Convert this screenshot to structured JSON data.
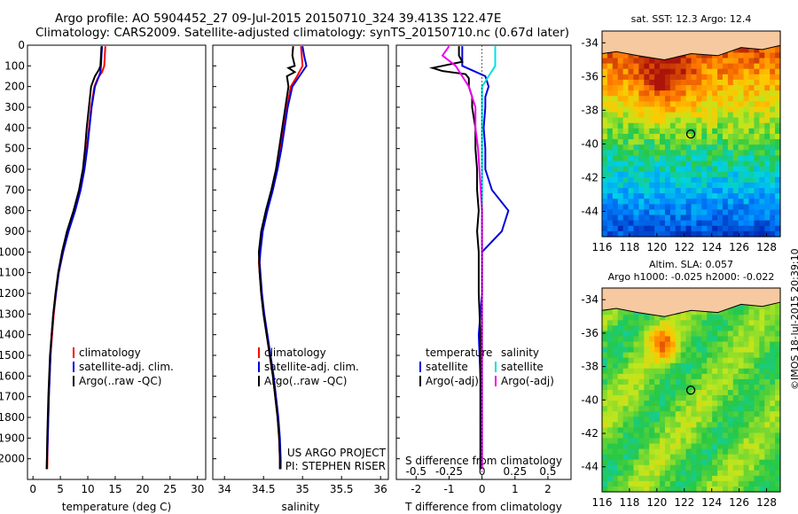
{
  "header": {
    "line1": "Argo profile: AO 5904452_27 09-Jul-2015 20150710_324 39.413S 122.47E",
    "line2": "Climatology: CARS2009. Satellite-adjusted climatology: synTS_20150710.nc (0.67d later)"
  },
  "colors": {
    "climatology": "#ff0000",
    "satellite": "#0000dd",
    "argo": "#000000",
    "sat_salinity": "#00e0e0",
    "argo_salinity": "#ee00ee"
  },
  "chart_data": [
    {
      "type": "line",
      "id": "temperature",
      "xlabel": "temperature (deg C)",
      "ylabel": "",
      "xlim": [
        -1,
        31.5
      ],
      "ylim": [
        2100,
        0
      ],
      "xticks": [
        "0",
        "5",
        "10",
        "15",
        "20",
        "25",
        "30"
      ],
      "yticks": [
        "0",
        "100",
        "200",
        "300",
        "400",
        "500",
        "600",
        "700",
        "800",
        "900",
        "1000",
        "1100",
        "1200",
        "1300",
        "1400",
        "1500",
        "1600",
        "1700",
        "1800",
        "1900",
        "2000"
      ],
      "legend": [
        "climatology",
        "satellite-adj. clim.",
        "Argo(..raw -QC)"
      ],
      "legend_position": "bottom-right",
      "series": [
        {
          "name": "climatology",
          "depth": [
            5,
            50,
            100,
            130,
            160,
            200,
            250,
            300,
            400,
            500,
            600,
            700,
            800,
            900,
            1000,
            1100,
            1200,
            1300,
            1400,
            1500,
            1700,
            1900,
            2050
          ],
          "values": [
            13.2,
            13.1,
            13.0,
            12.6,
            11.8,
            11.2,
            10.9,
            10.6,
            10.2,
            9.8,
            9.3,
            8.6,
            7.5,
            6.4,
            5.5,
            4.7,
            4.2,
            3.8,
            3.5,
            3.2,
            2.9,
            2.7,
            2.6
          ]
        },
        {
          "name": "satellite-adj. clim.",
          "depth": [
            5,
            50,
            100,
            130,
            160,
            200,
            250,
            300,
            400,
            500,
            600,
            700,
            800,
            900,
            1000,
            1100,
            1200,
            1300,
            1400,
            1500,
            1700,
            1900,
            2050
          ],
          "values": [
            12.6,
            12.5,
            12.4,
            12.3,
            11.9,
            11.3,
            11.0,
            10.7,
            10.3,
            9.9,
            9.4,
            8.7,
            7.7,
            6.5,
            5.5,
            4.7,
            4.2,
            3.7,
            3.4,
            3.2,
            2.9,
            2.7,
            2.5
          ]
        },
        {
          "name": "Argo(..raw -QC)",
          "depth": [
            5,
            50,
            100,
            120,
            150,
            200,
            250,
            300,
            400,
            500,
            600,
            700,
            800,
            900,
            1000,
            1100,
            1200,
            1300,
            1400,
            1500,
            1700,
            1900,
            2050
          ],
          "values": [
            12.5,
            12.4,
            12.3,
            12.0,
            11.3,
            10.6,
            10.4,
            10.2,
            9.8,
            9.5,
            9.1,
            8.4,
            7.4,
            6.2,
            5.3,
            4.6,
            4.1,
            3.7,
            3.4,
            3.1,
            2.8,
            2.6,
            2.5
          ]
        }
      ]
    },
    {
      "type": "line",
      "id": "salinity",
      "xlabel": "salinity",
      "ylabel": "",
      "xlim": [
        33.85,
        36.1
      ],
      "ylim": [
        2100,
        0
      ],
      "xticks": [
        "34",
        "34.5",
        "35",
        "35.5",
        "36"
      ],
      "legend": [
        "climatology",
        "satellite-adj. clim.",
        "Argo(..raw -QC)"
      ],
      "legend_position": "bottom-right",
      "annotation_lines": [
        "US ARGO PROJECT",
        "PI: STEPHEN RISER"
      ],
      "series": [
        {
          "name": "climatology",
          "depth": [
            5,
            50,
            100,
            150,
            200,
            300,
            400,
            500,
            600,
            700,
            800,
            900,
            1000,
            1050,
            1100,
            1200,
            1300,
            1400,
            1500,
            1600,
            1700,
            1800,
            1900,
            2000,
            2050
          ],
          "values": [
            34.98,
            34.99,
            35.0,
            34.93,
            34.85,
            34.8,
            34.76,
            34.72,
            34.67,
            34.61,
            34.54,
            34.48,
            34.45,
            34.44,
            34.45,
            34.47,
            34.5,
            34.54,
            34.58,
            34.62,
            34.65,
            34.68,
            34.7,
            34.71,
            34.71
          ]
        },
        {
          "name": "satellite-adj. clim.",
          "depth": [
            5,
            50,
            100,
            150,
            200,
            300,
            400,
            500,
            600,
            700,
            800,
            900,
            1000,
            1050,
            1100,
            1200,
            1300,
            1400,
            1500,
            1600,
            1700,
            1800,
            1900,
            2000,
            2050
          ],
          "values": [
            35.0,
            35.02,
            35.05,
            34.96,
            34.87,
            34.81,
            34.77,
            34.73,
            34.68,
            34.62,
            34.55,
            34.49,
            34.46,
            34.45,
            34.46,
            34.48,
            34.51,
            34.55,
            34.59,
            34.63,
            34.66,
            34.69,
            34.71,
            34.72,
            34.72
          ]
        },
        {
          "name": "Argo(..raw -QC)",
          "depth": [
            5,
            50,
            100,
            110,
            130,
            150,
            200,
            300,
            400,
            500,
            600,
            700,
            800,
            900,
            1000,
            1100,
            1200,
            1300,
            1400,
            1500,
            1600,
            1700,
            1800,
            1900,
            2000,
            2050
          ],
          "values": [
            34.88,
            34.87,
            34.9,
            34.82,
            34.9,
            34.8,
            34.82,
            34.78,
            34.74,
            34.7,
            34.66,
            34.6,
            34.53,
            34.47,
            34.44,
            34.45,
            34.47,
            34.5,
            34.54,
            34.58,
            34.62,
            34.65,
            34.68,
            34.7,
            34.71,
            34.71
          ]
        }
      ]
    },
    {
      "type": "line",
      "id": "difference",
      "xlabel": "T difference from climatology",
      "xlabel_top": "S difference from climatology",
      "xlim": [
        -2.6,
        2.7
      ],
      "ylim": [
        2100,
        0
      ],
      "xticks": [
        "-2",
        "-1",
        "0",
        "1",
        "2"
      ],
      "xticks_top": [
        "-0.5",
        "-0.25",
        "0",
        "0.25",
        "0.5"
      ],
      "xticks_top_values": [
        -0.5,
        -0.25,
        0,
        0.25,
        0.5
      ],
      "legend_groups": [
        {
          "title": "temperature",
          "items": [
            "satellite",
            "Argo(-adj)"
          ]
        },
        {
          "title": "salinity",
          "items": [
            "satellite",
            "Argo(-adj)"
          ]
        }
      ],
      "series": [
        {
          "name": "temperature satellite",
          "depth": [
            5,
            50,
            100,
            150,
            200,
            250,
            300,
            400,
            500,
            600,
            700,
            800,
            900,
            1000,
            1100,
            1200,
            1400,
            1600,
            1800,
            2000,
            2050
          ],
          "values": [
            -0.6,
            -0.6,
            -0.6,
            0.1,
            0.2,
            0.1,
            0.1,
            0.05,
            0.1,
            0.1,
            0.3,
            0.8,
            0.6,
            0.0,
            0.0,
            0.0,
            -0.1,
            -0.05,
            0.0,
            -0.05,
            -0.05
          ]
        },
        {
          "name": "temperature Argo(-adj)",
          "depth": [
            5,
            50,
            80,
            110,
            125,
            140,
            160,
            200,
            250,
            300,
            400,
            500,
            600,
            700,
            800,
            900,
            1000,
            1100,
            1200,
            1400,
            1600,
            1800,
            2000,
            2050
          ],
          "values": [
            -0.7,
            -0.7,
            -0.6,
            -1.5,
            -1.2,
            -0.5,
            -0.4,
            -0.4,
            -0.3,
            -0.3,
            -0.2,
            -0.2,
            -0.15,
            -0.15,
            -0.1,
            -0.15,
            -0.1,
            -0.1,
            -0.1,
            -0.05,
            -0.05,
            -0.05,
            -0.05,
            -0.05
          ]
        },
        {
          "name": "salinity satellite",
          "depth": [
            5,
            50,
            100,
            150,
            200,
            300,
            400,
            500,
            600,
            700,
            800,
            900,
            1000,
            1100,
            1200,
            1400,
            1600,
            1800,
            2000,
            2050
          ],
          "values": [
            0.1,
            0.1,
            0.1,
            0.05,
            0.0,
            0.0,
            0.0,
            0.0,
            0.0,
            0.0,
            0.0,
            0.0,
            0.0,
            0.0,
            0.0,
            0.0,
            0.0,
            0.0,
            0.0,
            0.0
          ]
        },
        {
          "name": "salinity Argo(-adj)",
          "depth": [
            5,
            50,
            100,
            150,
            200,
            300,
            400,
            500,
            600,
            700,
            800,
            900,
            1000,
            1100,
            1200,
            1400,
            1600,
            1800,
            2000,
            2050
          ],
          "values": [
            -0.25,
            -0.3,
            -0.2,
            -0.15,
            -0.1,
            -0.05,
            -0.05,
            -0.03,
            -0.02,
            -0.01,
            0.0,
            0.0,
            0.0,
            0.0,
            0.0,
            0.0,
            0.0,
            0.0,
            0.0,
            0.0
          ]
        }
      ]
    },
    {
      "type": "heatmap",
      "id": "sst_map",
      "title": "sat. SST: 12.3  Argo: 12.4",
      "xticks": [
        "116",
        "118",
        "120",
        "122",
        "124",
        "126",
        "128"
      ],
      "yticks": [
        "-34",
        "-36",
        "-38",
        "-40",
        "-42",
        "-44"
      ],
      "xlim": [
        116,
        129
      ],
      "ylim": [
        -45.5,
        -33.3
      ],
      "marker": {
        "lon": 122.47,
        "lat": -39.413
      }
    },
    {
      "type": "heatmap",
      "id": "sla_map",
      "title": "Altim. SLA: 0.057",
      "subtitle": "Argo h1000: -0.025 h2000: -0.022",
      "xticks": [
        "116",
        "118",
        "120",
        "122",
        "124",
        "126",
        "128"
      ],
      "yticks": [
        "-34",
        "-36",
        "-38",
        "-40",
        "-42",
        "-44"
      ],
      "xlim": [
        116,
        129
      ],
      "ylim": [
        -45.5,
        -33.3
      ],
      "marker": {
        "lon": 122.47,
        "lat": -39.413
      }
    }
  ],
  "footer": {
    "credit": "©IMOS 18-Jul-2015 20:39:10"
  }
}
